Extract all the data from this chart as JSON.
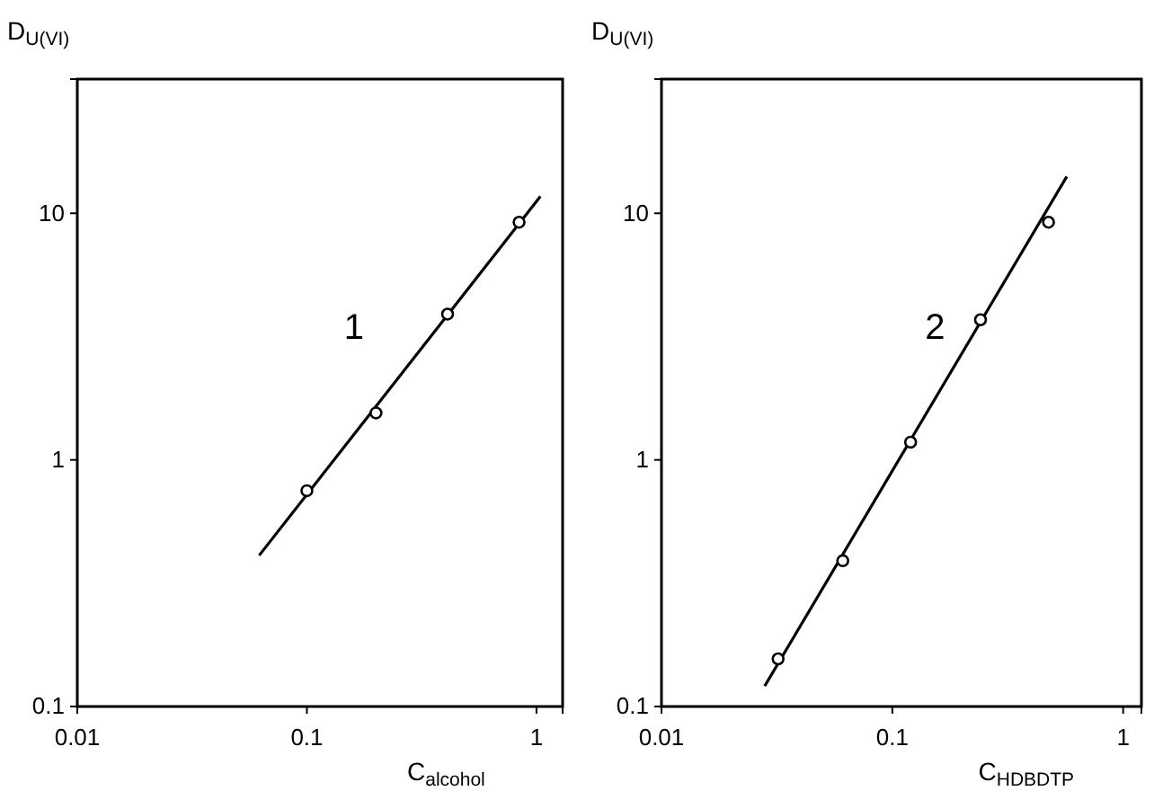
{
  "chart_data": [
    {
      "type": "scatter",
      "xlabel": "C$_{alcohol}$",
      "ylabel": "D$_{U(VI)}$",
      "log": "xy",
      "xlim": [
        0.01,
        1.3
      ],
      "ylim": [
        0.1,
        35
      ],
      "xticks": [
        0.01,
        0.1,
        1
      ],
      "yticks": [
        0.1,
        1,
        10
      ],
      "annotations": [
        "1"
      ],
      "series": [
        {
          "marker": "circle",
          "color": "#000000",
          "x": [
            0.1,
            0.2,
            0.41,
            0.84
          ],
          "values": [
            0.75,
            1.55,
            3.9,
            9.2
          ]
        },
        {
          "type": "line",
          "color": "#000000",
          "line_style": "solid",
          "x": [
            0.062,
            1.04
          ],
          "values": [
            0.41,
            11.7
          ]
        }
      ]
    },
    {
      "type": "scatter",
      "xlabel": "C$_{HDBDTP}$",
      "ylabel": "D$_{U(VI)}$",
      "log": "xy",
      "xlim": [
        0.01,
        1.2
      ],
      "ylim": [
        0.1,
        35
      ],
      "xticks": [
        0.01,
        0.1,
        1
      ],
      "yticks": [
        0.1,
        1,
        10
      ],
      "annotations": [
        "2"
      ],
      "series": [
        {
          "marker": "circle",
          "color": "#000000",
          "x": [
            0.032,
            0.061,
            0.12,
            0.241,
            0.475
          ],
          "values": [
            0.156,
            0.39,
            1.18,
            3.7,
            9.2
          ]
        },
        {
          "type": "line",
          "color": "#000000",
          "line_style": "solid",
          "x": [
            0.028,
            0.57
          ],
          "values": [
            0.121,
            14.1
          ]
        }
      ]
    }
  ]
}
